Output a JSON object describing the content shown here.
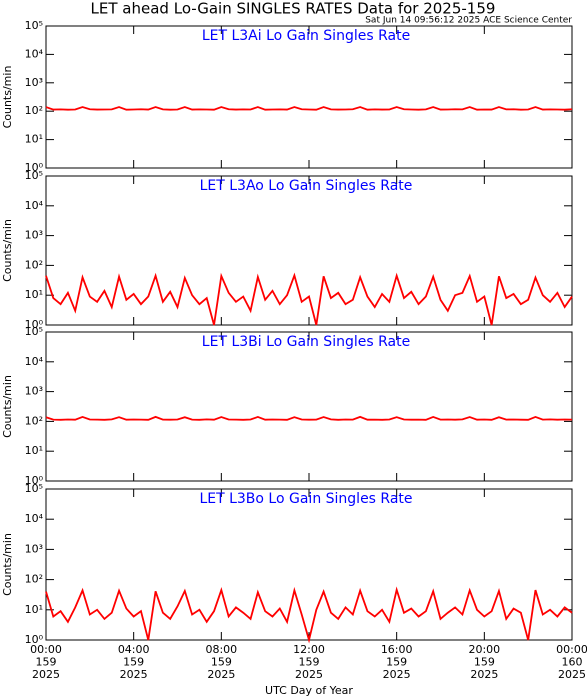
{
  "title": "LET ahead Lo-Gain SINGLES RATES Data for 2025-159",
  "subtitle": "Sat Jun 14 09:56:12 2025 ACE Science Center",
  "x_label": "UTC Day of Year",
  "chart_data": [
    {
      "type": "line",
      "title": "LET L3Ai Lo Gain Singles Rate",
      "title_color": "#0000ff",
      "ylabel": "Counts/min",
      "color": "#ff0000",
      "yscale": "log",
      "x": [
        0,
        20,
        40,
        60,
        80,
        100,
        120,
        140,
        160,
        180,
        200,
        220,
        240,
        260,
        280,
        300,
        320,
        340,
        360,
        380,
        400,
        420,
        440,
        460,
        480,
        500,
        520,
        540,
        560,
        580,
        600,
        620,
        640,
        660,
        680,
        700,
        720,
        740,
        760,
        780,
        800,
        820,
        840,
        860,
        880,
        900,
        920,
        940,
        960,
        980,
        1000,
        1020,
        1040,
        1060,
        1080,
        1100,
        1120,
        1140,
        1160,
        1180,
        1200,
        1220,
        1240,
        1260,
        1280,
        1300,
        1320,
        1340,
        1360,
        1380,
        1400,
        1420,
        1440
      ],
      "values": [
        140,
        114,
        116,
        113,
        115,
        140,
        117,
        114,
        115,
        116,
        140,
        113,
        115,
        117,
        114,
        140,
        116,
        113,
        115,
        140,
        114,
        116,
        115,
        113,
        140,
        117,
        114,
        116,
        115,
        140,
        113,
        115,
        116,
        114,
        140,
        117,
        115,
        113,
        140,
        116,
        114,
        115,
        117,
        140,
        113,
        116,
        114,
        115,
        140,
        117,
        115,
        113,
        116,
        140,
        114,
        115,
        117,
        116,
        140,
        113,
        115,
        114,
        140,
        116,
        117,
        113,
        115,
        140,
        114,
        116,
        115,
        113,
        117
      ],
      "xlim": [
        0,
        1440
      ],
      "xticks": [
        0,
        240,
        480,
        720,
        960,
        1200,
        1440
      ],
      "ylim": [
        1,
        100000
      ],
      "yticks": [
        {
          "value": 1,
          "label": "10⁰"
        },
        {
          "value": 10,
          "label": "10¹"
        },
        {
          "value": 100,
          "label": "10²"
        },
        {
          "value": 1000,
          "label": "10³"
        },
        {
          "value": 10000,
          "label": "10⁴"
        },
        {
          "value": 100000,
          "label": "10⁵"
        }
      ]
    },
    {
      "type": "line",
      "title": "LET L3Ao Lo Gain Singles Rate",
      "title_color": "#0000ff",
      "ylabel": "Counts/min",
      "color": "#ff0000",
      "yscale": "log",
      "x": [
        0,
        20,
        40,
        60,
        80,
        100,
        120,
        140,
        160,
        180,
        200,
        220,
        240,
        260,
        280,
        300,
        320,
        340,
        360,
        380,
        400,
        420,
        440,
        460,
        480,
        500,
        520,
        540,
        560,
        580,
        600,
        620,
        640,
        660,
        680,
        700,
        720,
        740,
        760,
        780,
        800,
        820,
        840,
        860,
        880,
        900,
        920,
        940,
        960,
        980,
        1000,
        1020,
        1040,
        1060,
        1080,
        1100,
        1120,
        1140,
        1160,
        1180,
        1200,
        1220,
        1240,
        1260,
        1280,
        1300,
        1320,
        1340,
        1360,
        1380,
        1400,
        1420,
        1440
      ],
      "values": [
        45,
        8,
        5,
        12,
        3,
        40,
        9,
        6,
        14,
        4,
        42,
        7,
        11,
        5,
        9,
        45,
        6,
        13,
        4,
        38,
        10,
        5,
        8,
        1,
        44,
        12,
        6,
        9,
        3,
        41,
        7,
        14,
        5,
        10,
        46,
        6,
        9,
        1,
        43,
        8,
        12,
        5,
        7,
        40,
        9,
        4,
        11,
        6,
        45,
        8,
        13,
        5,
        9,
        42,
        7,
        3,
        10,
        12,
        44,
        6,
        9,
        1,
        43,
        8,
        11,
        5,
        7,
        39,
        10,
        6,
        12,
        4,
        9
      ],
      "xlim": [
        0,
        1440
      ],
      "xticks": [
        0,
        240,
        480,
        720,
        960,
        1200,
        1440
      ],
      "ylim": [
        1,
        100000
      ],
      "yticks": [
        {
          "value": 1,
          "label": "10⁰"
        },
        {
          "value": 10,
          "label": "10¹"
        },
        {
          "value": 100,
          "label": "10²"
        },
        {
          "value": 1000,
          "label": "10³"
        },
        {
          "value": 10000,
          "label": "10⁴"
        },
        {
          "value": 100000,
          "label": "10⁵"
        }
      ]
    },
    {
      "type": "line",
      "title": "LET L3Bi Lo Gain Singles Rate",
      "title_color": "#0000ff",
      "ylabel": "Counts/min",
      "color": "#ff0000",
      "yscale": "log",
      "x": [
        0,
        20,
        40,
        60,
        80,
        100,
        120,
        140,
        160,
        180,
        200,
        220,
        240,
        260,
        280,
        300,
        320,
        340,
        360,
        380,
        400,
        420,
        440,
        460,
        480,
        500,
        520,
        540,
        560,
        580,
        600,
        620,
        640,
        660,
        680,
        700,
        720,
        740,
        760,
        780,
        800,
        820,
        840,
        860,
        880,
        900,
        920,
        940,
        960,
        980,
        1000,
        1020,
        1040,
        1060,
        1080,
        1100,
        1120,
        1140,
        1160,
        1180,
        1200,
        1220,
        1240,
        1260,
        1280,
        1300,
        1320,
        1340,
        1360,
        1380,
        1400,
        1420,
        1440
      ],
      "values": [
        138,
        115,
        113,
        116,
        114,
        141,
        116,
        115,
        113,
        117,
        139,
        114,
        116,
        115,
        113,
        142,
        115,
        114,
        116,
        138,
        115,
        113,
        117,
        114,
        140,
        116,
        115,
        113,
        116,
        141,
        114,
        116,
        115,
        113,
        139,
        116,
        114,
        115,
        140,
        117,
        113,
        116,
        115,
        142,
        114,
        115,
        113,
        116,
        139,
        116,
        114,
        115,
        113,
        141,
        115,
        116,
        114,
        117,
        140,
        114,
        116,
        113,
        138,
        115,
        116,
        114,
        113,
        141,
        115,
        117,
        114,
        116,
        115
      ],
      "xlim": [
        0,
        1440
      ],
      "xticks": [
        0,
        240,
        480,
        720,
        960,
        1200,
        1440
      ],
      "ylim": [
        1,
        100000
      ],
      "yticks": [
        {
          "value": 1,
          "label": "10⁰"
        },
        {
          "value": 10,
          "label": "10¹"
        },
        {
          "value": 100,
          "label": "10²"
        },
        {
          "value": 1000,
          "label": "10³"
        },
        {
          "value": 10000,
          "label": "10⁴"
        },
        {
          "value": 100000,
          "label": "10⁵"
        }
      ]
    },
    {
      "type": "line",
      "title": "LET L3Bo Lo Gain Singles Rate",
      "title_color": "#0000ff",
      "ylabel": "Counts/min",
      "color": "#ff0000",
      "yscale": "log",
      "x": [
        0,
        20,
        40,
        60,
        80,
        100,
        120,
        140,
        160,
        180,
        200,
        220,
        240,
        260,
        280,
        300,
        320,
        340,
        360,
        380,
        400,
        420,
        440,
        460,
        480,
        500,
        520,
        540,
        560,
        580,
        600,
        620,
        640,
        660,
        680,
        700,
        720,
        740,
        760,
        780,
        800,
        820,
        840,
        860,
        880,
        900,
        920,
        940,
        960,
        980,
        1000,
        1020,
        1040,
        1060,
        1080,
        1100,
        1120,
        1140,
        1160,
        1180,
        1200,
        1220,
        1240,
        1260,
        1280,
        1300,
        1320,
        1340,
        1360,
        1380,
        1400,
        1420,
        1440
      ],
      "values": [
        40,
        6,
        9,
        4,
        12,
        44,
        7,
        10,
        5,
        8,
        43,
        11,
        6,
        9,
        1,
        41,
        8,
        5,
        13,
        42,
        7,
        10,
        4,
        9,
        45,
        6,
        12,
        8,
        5,
        38,
        9,
        6,
        11,
        4,
        44,
        7,
        1,
        10,
        40,
        8,
        5,
        12,
        7,
        43,
        9,
        6,
        10,
        4,
        46,
        8,
        11,
        6,
        9,
        41,
        5,
        8,
        12,
        7,
        44,
        10,
        6,
        9,
        42,
        5,
        11,
        8,
        1,
        45,
        7,
        10,
        6,
        12,
        8
      ],
      "xlim": [
        0,
        1440
      ],
      "xticks": [
        {
          "value": 0,
          "label": "00:00\n159\n2025"
        },
        {
          "value": 240,
          "label": "04:00\n159\n2025"
        },
        {
          "value": 480,
          "label": "08:00\n159\n2025"
        },
        {
          "value": 720,
          "label": "12:00\n159\n2025"
        },
        {
          "value": 960,
          "label": "16:00\n159\n2025"
        },
        {
          "value": 1200,
          "label": "20:00\n159\n2025"
        },
        {
          "value": 1440,
          "label": "00:00\n160\n2025"
        }
      ],
      "ylim": [
        1,
        100000
      ],
      "yticks": [
        {
          "value": 1,
          "label": "10⁰"
        },
        {
          "value": 10,
          "label": "10¹"
        },
        {
          "value": 100,
          "label": "10²"
        },
        {
          "value": 1000,
          "label": "10³"
        },
        {
          "value": 10000,
          "label": "10⁴"
        },
        {
          "value": 100000,
          "label": "10⁵"
        }
      ]
    }
  ]
}
